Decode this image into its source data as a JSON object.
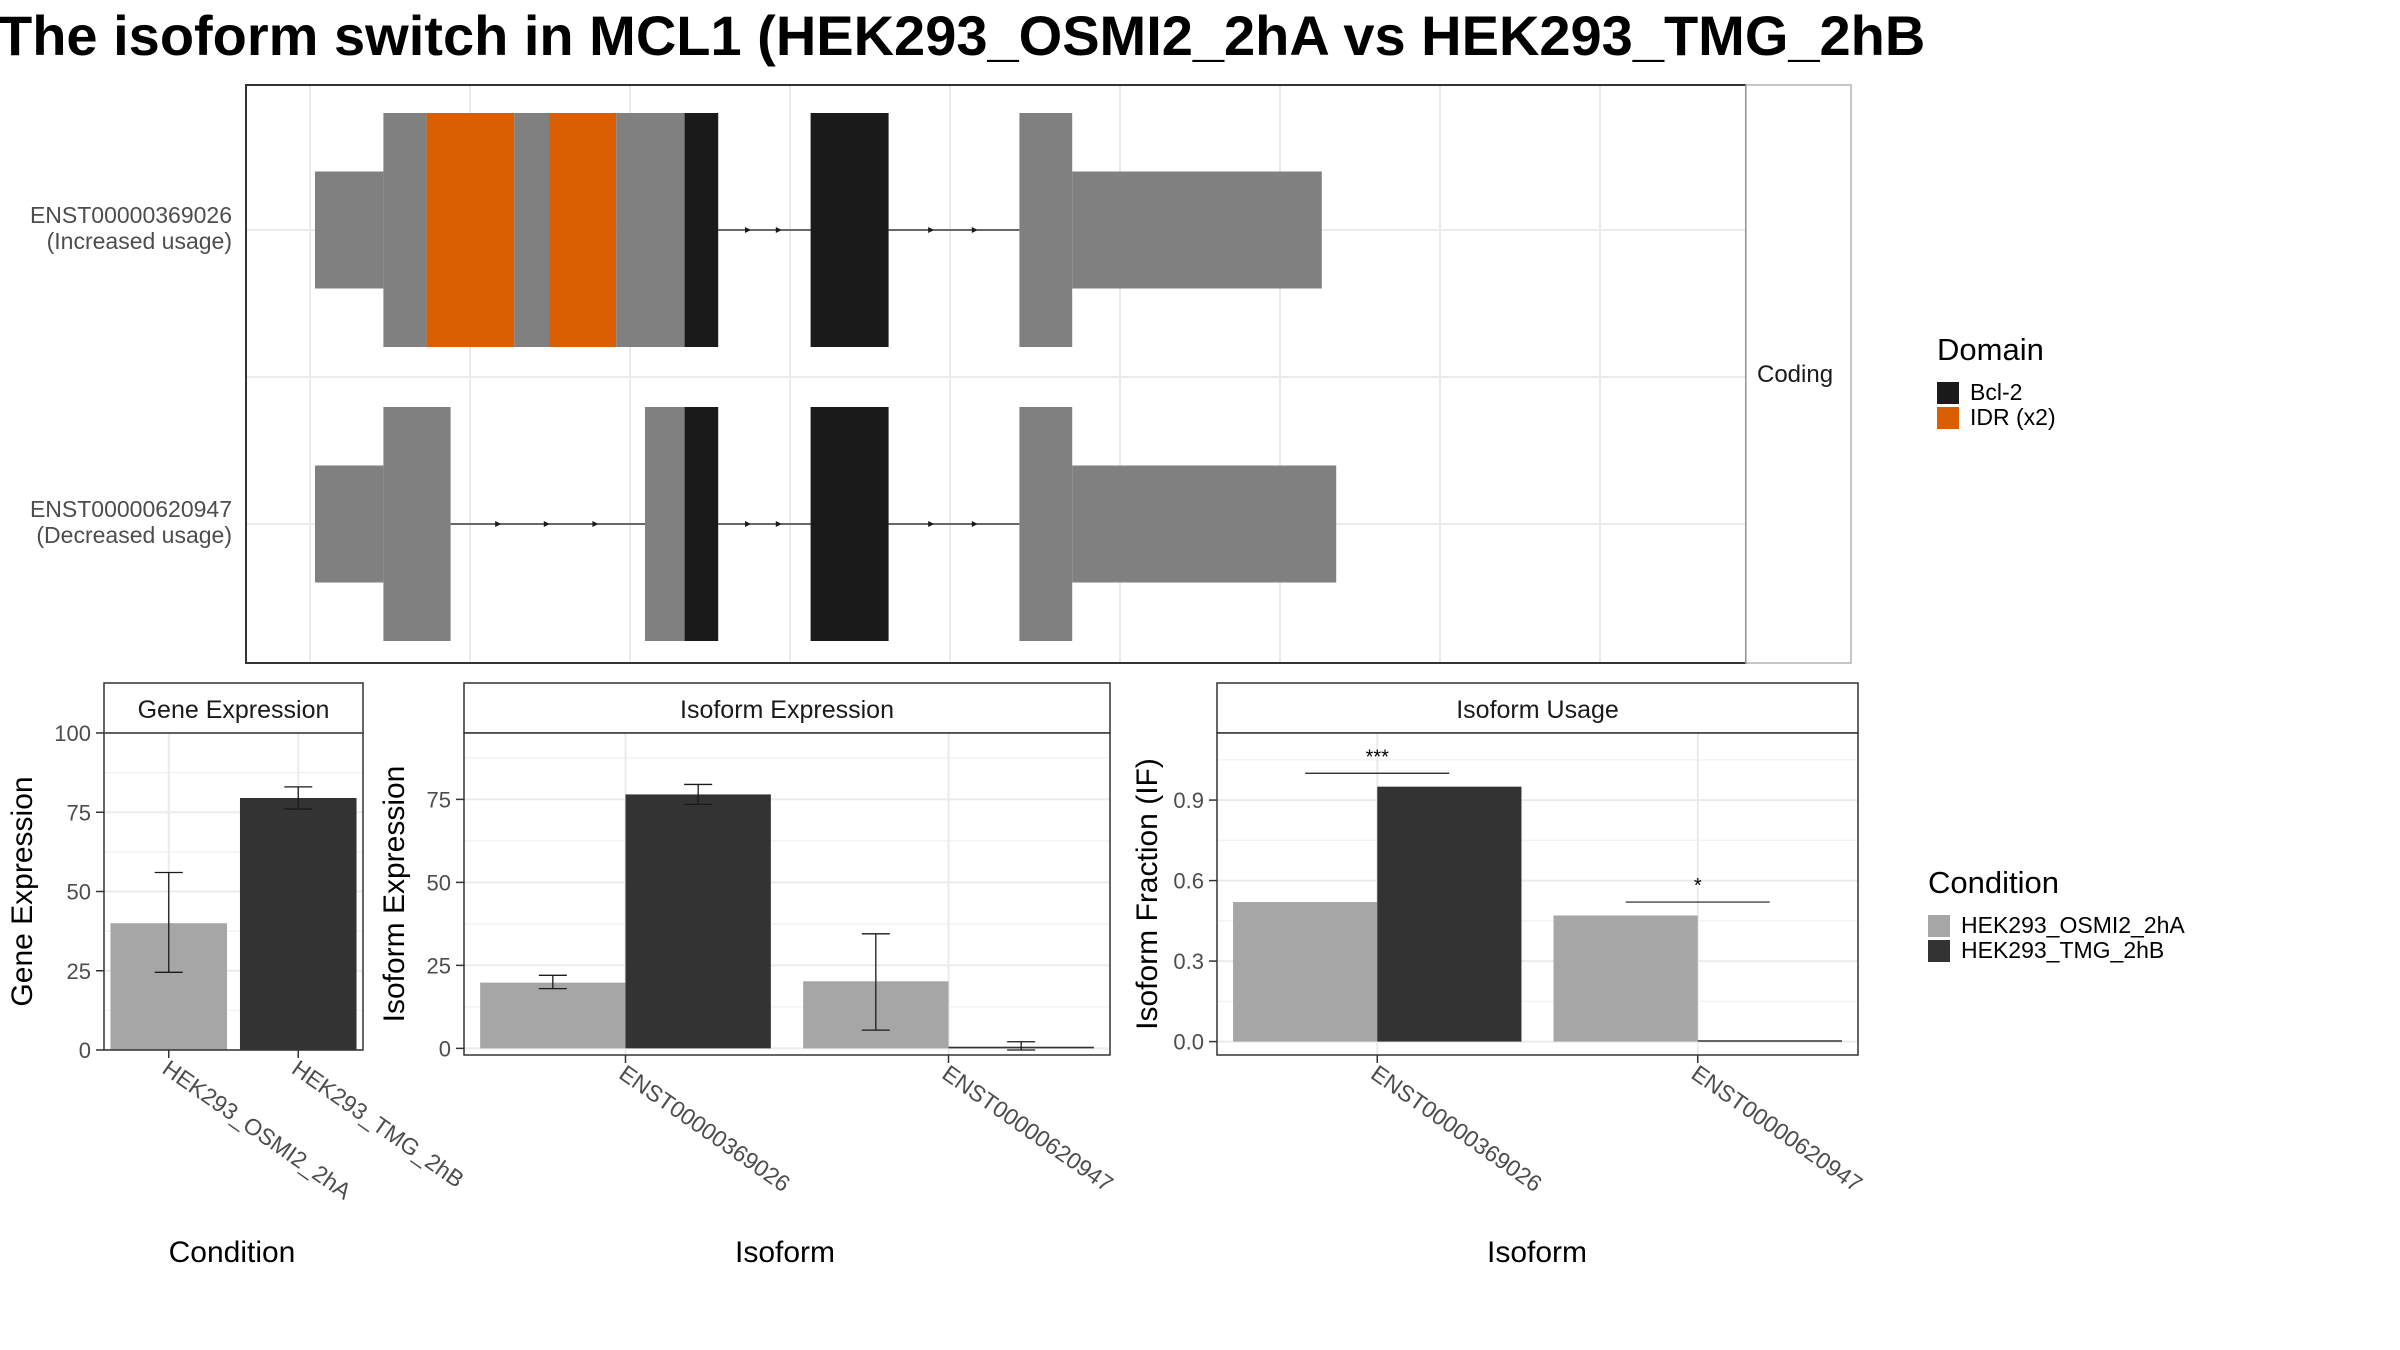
{
  "title": "The isoform switch in MCL1 (HEK293_OSMI2_2hA vs HEK293_TMG_2hB",
  "colors": {
    "utr": "#808080",
    "bcl2": "#1a1a1a",
    "idr": "#d95f02",
    "cond_a": "#a6a6a6",
    "cond_b": "#333333"
  },
  "structure_panel": {
    "facet_label": "Coding",
    "isoforms": [
      {
        "id": "ENST00000369026",
        "usage": "(Increased usage)",
        "segments": [
          {
            "kind": "utr",
            "start": 0,
            "end": 57
          },
          {
            "kind": "cds",
            "start": 57,
            "end": 93
          },
          {
            "kind": "idr",
            "start": 93,
            "end": 166
          },
          {
            "kind": "cds",
            "start": 166,
            "end": 195
          },
          {
            "kind": "idr",
            "start": 195,
            "end": 251
          },
          {
            "kind": "cds",
            "start": 251,
            "end": 308
          },
          {
            "kind": "bcl2",
            "start": 308,
            "end": 336
          },
          {
            "kind": "bcl2",
            "start": 413,
            "end": 478
          },
          {
            "kind": "cds",
            "start": 587,
            "end": 631
          },
          {
            "kind": "utr",
            "start": 631,
            "end": 839
          }
        ],
        "introns": [
          [
            336,
            413
          ],
          [
            478,
            587
          ]
        ]
      },
      {
        "id": "ENST00000620947",
        "usage": "(Decreased usage)",
        "segments": [
          {
            "kind": "utr",
            "start": 0,
            "end": 57
          },
          {
            "kind": "cds",
            "start": 57,
            "end": 113
          },
          {
            "kind": "cds",
            "start": 275,
            "end": 308
          },
          {
            "kind": "bcl2",
            "start": 308,
            "end": 336
          },
          {
            "kind": "bcl2",
            "start": 413,
            "end": 478
          },
          {
            "kind": "cds",
            "start": 587,
            "end": 631
          },
          {
            "kind": "utr",
            "start": 631,
            "end": 851
          }
        ],
        "introns": [
          [
            113,
            275
          ],
          [
            336,
            413
          ],
          [
            478,
            587
          ]
        ]
      }
    ],
    "legend": {
      "title": "Domain",
      "items": [
        {
          "label": "Bcl-2",
          "color": "#1a1a1a"
        },
        {
          "label": "IDR (x2)",
          "color": "#d95f02"
        }
      ]
    }
  },
  "condition_legend": {
    "title": "Condition",
    "items": [
      {
        "label": "HEK293_OSMI2_2hA",
        "color": "#a6a6a6"
      },
      {
        "label": "HEK293_TMG_2hB",
        "color": "#333333"
      }
    ]
  },
  "chart_data": [
    {
      "type": "bar",
      "title": "Gene Expression",
      "xlabel": "Condition",
      "ylabel": "Gene Expression",
      "ylim": [
        0,
        100
      ],
      "yticks": [
        0,
        25,
        50,
        75,
        100
      ],
      "categories": [
        "HEK293_OSMI2_2hA",
        "HEK293_TMG_2hB"
      ],
      "values": [
        40,
        79.5
      ],
      "error": [
        [
          24.5,
          56
        ],
        [
          76,
          83
        ]
      ]
    },
    {
      "type": "bar",
      "title": "Isoform Expression",
      "xlabel": "Isoform",
      "ylabel": "Isoform Expression",
      "ylim": [
        -2,
        95
      ],
      "yticks": [
        0,
        25,
        50,
        75
      ],
      "categories": [
        "ENST00000369026",
        "ENST00000620947"
      ],
      "series": [
        {
          "name": "HEK293_OSMI2_2hA",
          "values": [
            19.8,
            20.2
          ],
          "error": [
            [
              18,
              22
            ],
            [
              5.5,
              34.5
            ]
          ]
        },
        {
          "name": "HEK293_TMG_2hB",
          "values": [
            76.5,
            0.5
          ],
          "error": [
            [
              73.5,
              79.5
            ],
            [
              -0.5,
              2
            ]
          ]
        }
      ]
    },
    {
      "type": "bar",
      "title": "Isoform Usage",
      "xlabel": "Isoform",
      "ylabel": "Isoform Fraction (IF)",
      "ylim": [
        -0.05,
        1.15
      ],
      "yticks": [
        0.0,
        0.3,
        0.6,
        0.9
      ],
      "ytick_labels": [
        "0.0",
        "0.3",
        "0.6",
        "0.9"
      ],
      "categories": [
        "ENST00000369026",
        "ENST00000620947"
      ],
      "series": [
        {
          "name": "HEK293_OSMI2_2hA",
          "values": [
            0.52,
            0.47
          ]
        },
        {
          "name": "HEK293_TMG_2hB",
          "values": [
            0.95,
            0.005
          ]
        }
      ],
      "significance": [
        "***",
        "*"
      ],
      "significance_y": [
        1.0,
        0.52
      ]
    }
  ]
}
